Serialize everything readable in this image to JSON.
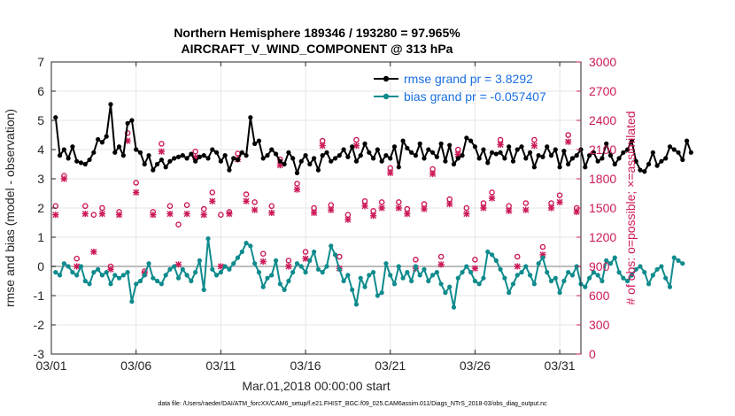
{
  "chart_data": {
    "type": "line",
    "title": "Northern Hemisphere 189346 / 193280 = 97.965%",
    "subtitle": "AIRCRAFT_V_WIND_COMPONENT @ 313 hPa",
    "xlabel": "Mar.01,2018 00:00:00 start",
    "ylabel": "rmse and bias (model - observation)",
    "y2label": "# of obs: o=possible; ×=assimilated",
    "footnote": "data file: /Users/raeder/DAI/ATM_forcXX/CAM6_setup/f.e21.FHIST_BGC.f09_025.CAM6assim.011/Diags_NTrS_2018-03/obs_diag_output.nc",
    "xlim": [
      0,
      31.25
    ],
    "ylim": [
      -3,
      7
    ],
    "y2lim": [
      0,
      3000
    ],
    "xticks": [
      0,
      5,
      10,
      15,
      20,
      25,
      30
    ],
    "xtick_labels": [
      "03/01",
      "03/06",
      "03/11",
      "03/16",
      "03/21",
      "03/26",
      "03/31"
    ],
    "yticks": [
      -3,
      -2,
      -1,
      0,
      1,
      2,
      3,
      4,
      5,
      6,
      7
    ],
    "y2ticks": [
      0,
      300,
      600,
      900,
      1200,
      1500,
      1800,
      2100,
      2400,
      2700,
      3000
    ],
    "legend": {
      "position": "top-right",
      "entries": [
        "rmse grand pr = 3.8292",
        "bias grand pr = -0.057407"
      ]
    },
    "colors": {
      "rmse": "#000000",
      "bias": "#0f8b8d",
      "obs": "#cc1a5a",
      "zero": "#bdbdbd",
      "grid": "#e6e6e6"
    },
    "series": [
      {
        "name": "rmse",
        "axis": "left",
        "dt": 0.25,
        "values": [
          5.1,
          3.8,
          4.0,
          3.7,
          4.1,
          3.6,
          3.55,
          3.5,
          3.65,
          3.9,
          4.35,
          4.25,
          4.45,
          5.55,
          3.9,
          4.1,
          3.8,
          4.9,
          5.0,
          4.0,
          3.9,
          3.5,
          3.8,
          3.3,
          3.5,
          3.65,
          3.4,
          3.6,
          3.7,
          3.75,
          3.8,
          3.7,
          3.85,
          3.6,
          3.75,
          3.8,
          3.7,
          4.0,
          3.9,
          3.6,
          3.8,
          3.3,
          3.7,
          3.65,
          3.9,
          3.8,
          5.1,
          4.2,
          4.3,
          3.7,
          3.8,
          4.0,
          3.85,
          3.6,
          3.5,
          3.9,
          3.7,
          3.2,
          3.6,
          3.8,
          3.5,
          3.7,
          3.3,
          3.8,
          3.9,
          3.6,
          3.7,
          3.8,
          4.0,
          3.75,
          4.1,
          3.6,
          3.8,
          4.2,
          3.9,
          3.7,
          4.0,
          3.6,
          3.8,
          3.7,
          4.1,
          3.4,
          4.3,
          4.05,
          3.9,
          3.8,
          4.2,
          3.7,
          4.0,
          3.9,
          3.75,
          4.2,
          3.6,
          4.15,
          3.5,
          3.7,
          3.8,
          4.4,
          4.3,
          4.1,
          3.7,
          4.0,
          3.55,
          3.9,
          3.85,
          3.9,
          3.7,
          4.1,
          3.6,
          4.0,
          4.1,
          3.7,
          3.9,
          3.4,
          3.8,
          3.75,
          4.1,
          3.8,
          4.0,
          3.4,
          3.95,
          3.5,
          3.7,
          3.8,
          4.0,
          3.4,
          3.8,
          3.9,
          3.6,
          3.7,
          4.2,
          3.8,
          3.5,
          3.7,
          3.9,
          4.0,
          4.3,
          3.6,
          3.3,
          3.25,
          3.5,
          3.9,
          3.45,
          3.6,
          3.7,
          4.1,
          4.0,
          3.9,
          3.65,
          4.3,
          3.9
        ]
      },
      {
        "name": "bias",
        "axis": "left",
        "dt": 0.25,
        "values": [
          -0.2,
          -0.3,
          0.1,
          0.0,
          -0.2,
          -0.3,
          0.0,
          -0.5,
          -0.6,
          -0.2,
          -0.1,
          -0.3,
          -0.2,
          -0.6,
          -0.3,
          -0.4,
          -0.3,
          -0.2,
          -1.2,
          -0.6,
          -0.5,
          -0.3,
          0.1,
          -0.4,
          -0.5,
          -0.6,
          -0.3,
          -0.1,
          0.0,
          -0.4,
          -0.1,
          -0.3,
          -0.5,
          -0.2,
          0.2,
          -0.8,
          0.95,
          -0.1,
          -0.3,
          -0.2,
          0.0,
          -0.1,
          0.1,
          0.3,
          0.5,
          0.8,
          0.7,
          0.1,
          -0.2,
          -0.7,
          -0.4,
          -0.3,
          0.2,
          -0.6,
          -0.8,
          -0.5,
          -0.2,
          0.1,
          0.0,
          -0.2,
          0.2,
          0.5,
          -0.1,
          -0.2,
          0.0,
          0.7,
          0.4,
          -0.1,
          -0.5,
          -0.3,
          -0.8,
          -1.3,
          -0.4,
          -0.7,
          -0.3,
          -0.2,
          -1.0,
          -0.9,
          0.1,
          -0.3,
          -0.6,
          0.0,
          -0.4,
          -0.2,
          -0.5,
          0.0,
          -0.3,
          -0.1,
          -0.5,
          -0.3,
          -0.2,
          -0.6,
          -0.9,
          -0.7,
          -1.4,
          -0.4,
          -0.2,
          0.0,
          -0.2,
          -0.5,
          -0.6,
          -0.4,
          0.5,
          0.4,
          0.2,
          -0.1,
          -0.4,
          -0.9,
          -0.6,
          -0.3,
          -0.2,
          0.0,
          -0.3,
          -0.6,
          0.1,
          0.3,
          -0.2,
          -0.5,
          -0.4,
          -0.9,
          -0.5,
          -0.2,
          -0.3,
          0.0,
          -0.6,
          -0.7,
          -0.4,
          -0.2,
          -0.3,
          -0.5,
          0.2,
          0.1,
          0.3,
          -0.2,
          -0.4,
          -0.5,
          -0.3,
          -0.1,
          0.0,
          -0.2,
          -0.6,
          -0.3,
          -0.1,
          0.0,
          -0.4,
          -0.7,
          0.3,
          0.2,
          0.1
        ]
      },
      {
        "name": "obs possible",
        "axis": "right",
        "marker": "o",
        "x": [
          0.25,
          0.75,
          1.5,
          2.0,
          2.5,
          3.0,
          3.5,
          4.0,
          4.5,
          5.0,
          5.5,
          6.0,
          6.5,
          7.0,
          7.5,
          8.0,
          8.5,
          9.0,
          9.5,
          10.0,
          10.5,
          11.0,
          11.5,
          12.0,
          12.5,
          13.0,
          13.5,
          14.0,
          14.5,
          15.0,
          15.5,
          16.0,
          16.5,
          17.0,
          17.5,
          18.0,
          18.5,
          19.0,
          19.5,
          20.0,
          20.5,
          21.0,
          21.5,
          22.0,
          22.5,
          23.0,
          23.5,
          24.0,
          24.5,
          25.0,
          25.5,
          26.0,
          26.5,
          27.0,
          27.5,
          28.0,
          28.5,
          29.0,
          29.5,
          30.0,
          30.5,
          31.0
        ],
        "values": [
          1520,
          1830,
          980,
          1520,
          1430,
          1500,
          900,
          1460,
          2270,
          1760,
          850,
          1460,
          2160,
          1520,
          1330,
          1530,
          2080,
          1490,
          1660,
          1430,
          1460,
          2060,
          1640,
          1560,
          1030,
          1520,
          2000,
          960,
          1750,
          1050,
          1500,
          2190,
          1530,
          1000,
          1430,
          2200,
          1570,
          1470,
          1560,
          1910,
          1560,
          1490,
          970,
          1540,
          1900,
          1000,
          1590,
          2100,
          1500,
          970,
          1550,
          1660,
          2200,
          1520,
          1000,
          1550,
          2200,
          1100,
          1550,
          1630,
          2250,
          1500
        ]
      },
      {
        "name": "obs assimilated",
        "axis": "right",
        "marker": "x",
        "x": [
          0.25,
          0.75,
          1.5,
          2.0,
          2.5,
          3.0,
          3.5,
          4.0,
          4.5,
          5.0,
          5.5,
          6.0,
          6.5,
          7.0,
          7.5,
          8.0,
          8.5,
          9.0,
          9.5,
          10.0,
          10.5,
          11.0,
          11.5,
          12.0,
          12.5,
          13.0,
          13.5,
          14.0,
          14.5,
          15.0,
          15.5,
          16.0,
          16.5,
          17.0,
          17.5,
          18.0,
          18.5,
          19.0,
          19.5,
          20.0,
          20.5,
          21.0,
          21.5,
          22.0,
          22.5,
          23.0,
          23.5,
          24.0,
          24.5,
          25.0,
          25.5,
          26.0,
          26.5,
          27.0,
          27.5,
          28.0,
          28.5,
          29.0,
          29.5,
          30.0,
          30.5,
          31.0
        ],
        "values": [
          1430,
          1800,
          900,
          1440,
          1050,
          1440,
          870,
          1430,
          2190,
          1660,
          830,
          1430,
          2080,
          1440,
          920,
          1440,
          2020,
          1430,
          1570,
          900,
          1440,
          2000,
          1570,
          1480,
          950,
          1450,
          1940,
          900,
          1690,
          980,
          1450,
          2140,
          1480,
          880,
          1380,
          2140,
          1520,
          1420,
          1500,
          1860,
          1500,
          1440,
          880,
          1490,
          1850,
          920,
          1540,
          2050,
          1440,
          880,
          1500,
          1600,
          2150,
          1470,
          900,
          1480,
          2140,
          1020,
          1500,
          1560,
          2180,
          1460
        ]
      }
    ]
  }
}
